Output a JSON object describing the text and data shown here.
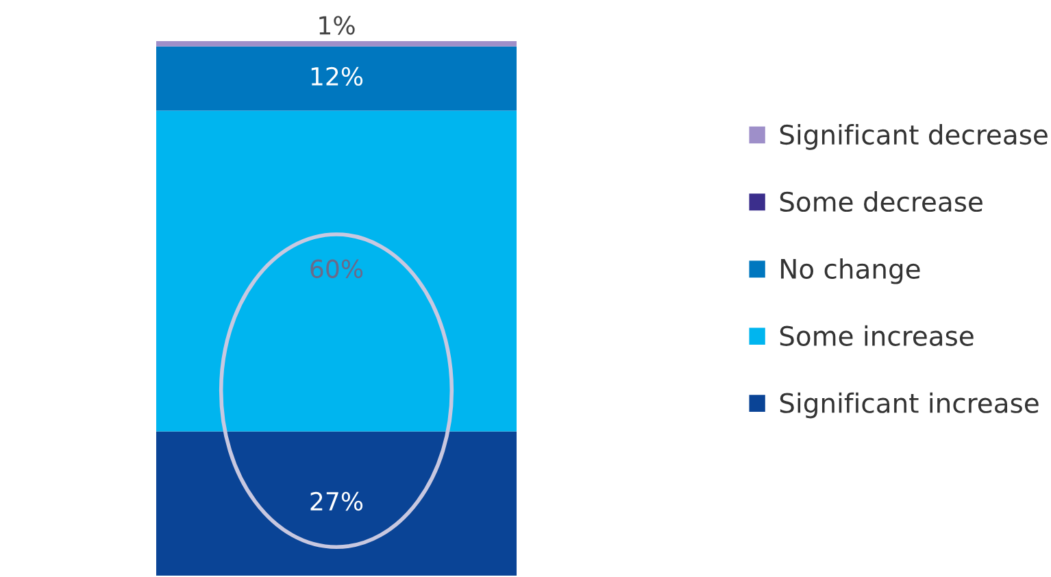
{
  "chart_data": {
    "type": "bar",
    "stacked": true,
    "categories": [
      null
    ],
    "series": [
      {
        "name": "Significant increase",
        "color": "#0a4496",
        "values": [
          27
        ],
        "value_labels": [
          "27%"
        ]
      },
      {
        "name": "Some increase",
        "color": "#00b5ef",
        "values": [
          60
        ],
        "value_labels": [
          "60%"
        ]
      },
      {
        "name": "No change",
        "color": "#0077bf",
        "values": [
          12
        ],
        "value_labels": [
          "12%"
        ]
      },
      {
        "name": "Some decrease",
        "color": "#3b2e8c",
        "values": [
          0
        ],
        "value_labels": [
          null
        ]
      },
      {
        "name": "Significant decrease",
        "color": "#9e8fc9",
        "values": [
          1
        ],
        "value_labels": [
          "1%"
        ]
      }
    ],
    "legend": "right"
  }
}
